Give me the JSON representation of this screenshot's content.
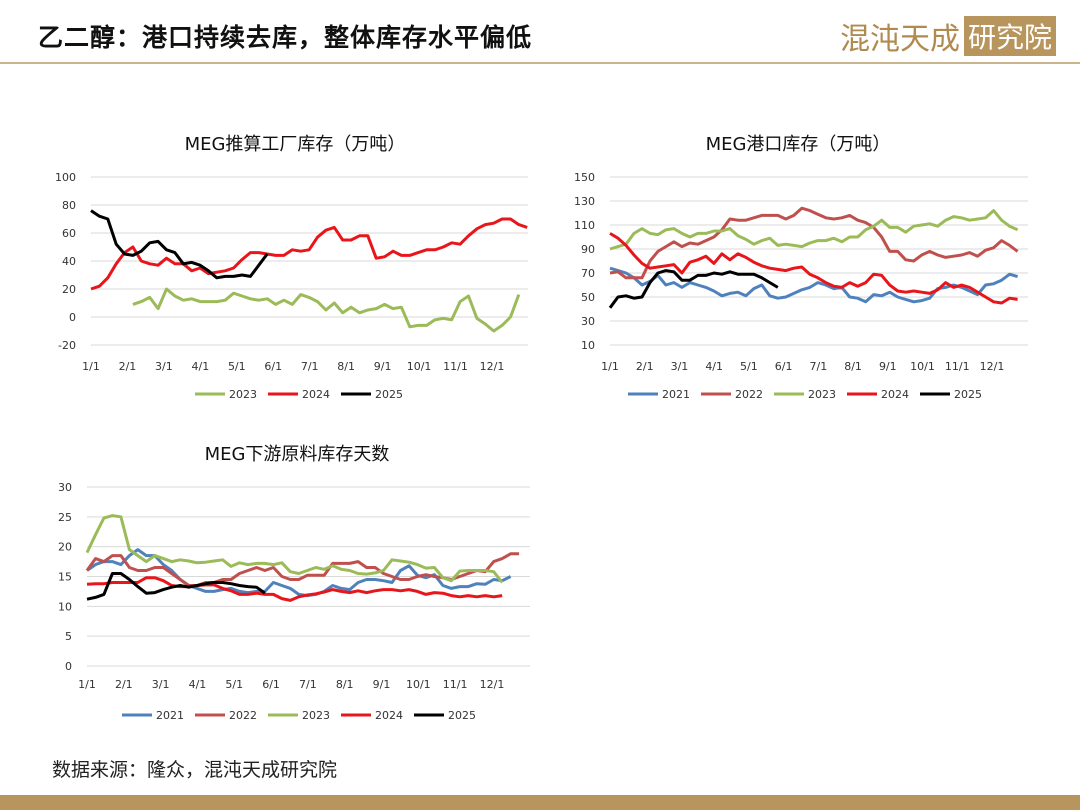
{
  "header": {
    "title": "乙二醇：港口持续去库，整体库存水平偏低",
    "logo_text": "混沌天成",
    "logo_box_text": "研究院"
  },
  "footer": {
    "source": "数据来源：隆众，混沌天成研究院"
  },
  "colors": {
    "2021": "#4f81bd",
    "2022": "#c0504d",
    "2023": "#9bbb59",
    "2024": "#e8161b",
    "2025": "#000000",
    "accent": "#b8955c"
  },
  "chart_data": [
    {
      "type": "line",
      "title": "MEG推算工厂库存（万吨）",
      "ylim": [
        -20,
        100
      ],
      "yticks": [
        "100",
        "80",
        "60",
        "40",
        "20",
        "0",
        "-20"
      ],
      "x_ticks": [
        "1/1",
        "2/1",
        "3/1",
        "4/1",
        "5/1",
        "6/1",
        "7/1",
        "8/1",
        "9/1",
        "10/1",
        "11/1",
        "12/1"
      ],
      "x_unit": "week of year",
      "legend": "bottom",
      "series": [
        {
          "name": "2023",
          "start_week": 5,
          "values": [
            9,
            11,
            14,
            6,
            20,
            15,
            12,
            13,
            11,
            11,
            11,
            12,
            17,
            15,
            13,
            12,
            13,
            9,
            12,
            9,
            16,
            14,
            11,
            5,
            10,
            3,
            7,
            3,
            5,
            6,
            9,
            6,
            7,
            -7,
            -6,
            -6,
            -2,
            -1,
            -2,
            11,
            15,
            -1,
            -5,
            -10,
            -6,
            0,
            16
          ]
        },
        {
          "name": "2024",
          "start_week": 0,
          "values": [
            20,
            22,
            28,
            38,
            46,
            50,
            40,
            38,
            37,
            42,
            38,
            38,
            33,
            35,
            31,
            32,
            33,
            35,
            41,
            46,
            46,
            45,
            44,
            44,
            48,
            47,
            48,
            57,
            62,
            64,
            55,
            55,
            58,
            58,
            42,
            43,
            47,
            44,
            44,
            46,
            48,
            48,
            50,
            53,
            52,
            58,
            63,
            66,
            67,
            70,
            70,
            66,
            64
          ]
        },
        {
          "name": "2025",
          "start_week": 0,
          "values": [
            76,
            72,
            70,
            52,
            45,
            44,
            47,
            53,
            54,
            48,
            46,
            38,
            39,
            37,
            33,
            28,
            29,
            29,
            30,
            29,
            37,
            45
          ]
        }
      ]
    },
    {
      "type": "line",
      "title": "MEG港口库存（万吨）",
      "ylim": [
        10,
        150
      ],
      "yticks": [
        "150",
        "130",
        "110",
        "90",
        "70",
        "50",
        "30",
        "10"
      ],
      "x_ticks": [
        "1/1",
        "2/1",
        "3/1",
        "4/1",
        "5/1",
        "6/1",
        "7/1",
        "8/1",
        "9/1",
        "10/1",
        "11/1",
        "12/1"
      ],
      "x_unit": "week of year",
      "legend": "bottom",
      "series": [
        {
          "name": "2021",
          "start_week": 0,
          "values": [
            74,
            72,
            70,
            66,
            60,
            63,
            68,
            60,
            62,
            58,
            62,
            60,
            58,
            55,
            51,
            53,
            54,
            51,
            57,
            60,
            51,
            49,
            50,
            53,
            56,
            58,
            62,
            60,
            57,
            58,
            50,
            49,
            46,
            52,
            51,
            54,
            50,
            48,
            46,
            47,
            49,
            57,
            58,
            60,
            58,
            55,
            52,
            60,
            61,
            64,
            69,
            67
          ]
        },
        {
          "name": "2022",
          "start_week": 0,
          "values": [
            70,
            71,
            66,
            66,
            66,
            80,
            88,
            92,
            96,
            92,
            95,
            94,
            97,
            100,
            106,
            115,
            114,
            114,
            116,
            118,
            118,
            118,
            115,
            118,
            124,
            122,
            119,
            116,
            115,
            116,
            118,
            114,
            112,
            108,
            100,
            88,
            88,
            81,
            80,
            85,
            88,
            85,
            83,
            84,
            85,
            87,
            84,
            89,
            91,
            97,
            93,
            88
          ]
        },
        {
          "name": "2023",
          "start_week": 0,
          "values": [
            90,
            92,
            94,
            103,
            107,
            103,
            102,
            106,
            107,
            103,
            100,
            103,
            103,
            105,
            105,
            107,
            101,
            98,
            94,
            97,
            99,
            93,
            94,
            93,
            92,
            95,
            97,
            97,
            99,
            96,
            100,
            100,
            106,
            109,
            114,
            108,
            108,
            104,
            109,
            110,
            111,
            109,
            114,
            117,
            116,
            114,
            115,
            116,
            122,
            114,
            109,
            106
          ]
        },
        {
          "name": "2024",
          "start_week": 0,
          "values": [
            103,
            99,
            93,
            85,
            78,
            74,
            75,
            76,
            77,
            70,
            79,
            81,
            84,
            78,
            86,
            81,
            86,
            83,
            79,
            76,
            74,
            73,
            72,
            74,
            75,
            69,
            66,
            62,
            59,
            58,
            62,
            59,
            62,
            69,
            68,
            60,
            55,
            54,
            55,
            54,
            53,
            56,
            62,
            58,
            60,
            58,
            54,
            50,
            46,
            45,
            49,
            48
          ]
        },
        {
          "name": "2025",
          "start_week": 0,
          "values": [
            41,
            50,
            51,
            49,
            50,
            62,
            70,
            72,
            71,
            64,
            64,
            68,
            68,
            70,
            69,
            71,
            69,
            69,
            69,
            66,
            62,
            58
          ]
        }
      ]
    },
    {
      "type": "line",
      "title": "MEG下游原料库存天数",
      "ylim": [
        0,
        30
      ],
      "yticks": [
        "30",
        "25",
        "20",
        "15",
        "10",
        "5",
        "0"
      ],
      "x_ticks": [
        "1/1",
        "2/1",
        "3/1",
        "4/1",
        "5/1",
        "6/1",
        "7/1",
        "8/1",
        "9/1",
        "10/1",
        "11/1",
        "12/1"
      ],
      "x_unit": "week of year",
      "legend": "bottom",
      "series": [
        {
          "name": "2021",
          "start_week": 0,
          "values": [
            16,
            17,
            17.5,
            17.5,
            17,
            18.5,
            19.5,
            18.5,
            18.5,
            17,
            16,
            14.5,
            13.5,
            13,
            12.5,
            12.5,
            12.8,
            13,
            12.5,
            12.3,
            12.5,
            12.5,
            14,
            13.5,
            13,
            12,
            11.8,
            12,
            12.5,
            13.5,
            13,
            12.8,
            14,
            14.5,
            14.5,
            14.3,
            14,
            16,
            16.8,
            15.2,
            14.8,
            15.3,
            13.5,
            13,
            13.3,
            13.3,
            13.8,
            13.7,
            14.5,
            14.3,
            15
          ]
        },
        {
          "name": "2022",
          "start_week": 0,
          "values": [
            16,
            18,
            17.5,
            18.5,
            18.5,
            16.5,
            16,
            16,
            16.5,
            16.5,
            15.5,
            14.5,
            13.5,
            13.5,
            14,
            14,
            14.5,
            14.5,
            15.5,
            16,
            16.5,
            16,
            16.5,
            15,
            14.5,
            14.5,
            15.2,
            15.2,
            15.2,
            17.2,
            17.2,
            17.2,
            17.5,
            16.5,
            16.5,
            15.5,
            15,
            14.5,
            14.5,
            15,
            15.3,
            15,
            14.8,
            14.5,
            15,
            15.5,
            16,
            15.8,
            17.5,
            18,
            18.8,
            18.8
          ]
        },
        {
          "name": "2023",
          "start_week": 0,
          "values": [
            19,
            22,
            24.8,
            25.2,
            25,
            19.5,
            18.5,
            17.5,
            18.5,
            18,
            17.5,
            17.8,
            17.6,
            17.3,
            17.4,
            17.6,
            17.8,
            16.7,
            17.3,
            17,
            17.2,
            17.2,
            17,
            17.3,
            15.8,
            15.5,
            16,
            16.5,
            16.2,
            16.8,
            16.2,
            16,
            15.5,
            15.4,
            15.6,
            16,
            17.8,
            17.6,
            17.4,
            17,
            16.4,
            16.5,
            14.8,
            14.3,
            15.9,
            16,
            16,
            16,
            15.8,
            14
          ]
        },
        {
          "name": "2024",
          "start_week": 0,
          "values": [
            13.7,
            13.8,
            13.8,
            14,
            14,
            14,
            14,
            14.8,
            14.8,
            14.3,
            13.5,
            13.3,
            13.3,
            13.5,
            13.6,
            13.6,
            13,
            12.6,
            12,
            12,
            12.2,
            12,
            12,
            11.3,
            11,
            11.6,
            11.9,
            12.1,
            12.4,
            12.8,
            12.5,
            12.3,
            12.6,
            12.3,
            12.6,
            12.8,
            12.8,
            12.6,
            12.8,
            12.5,
            12,
            12.3,
            12.2,
            11.8,
            11.6,
            11.8,
            11.6,
            11.8,
            11.6,
            11.8
          ]
        },
        {
          "name": "2025",
          "start_week": 0,
          "values": [
            11.2,
            11.5,
            12,
            15.5,
            15.5,
            14.5,
            13.3,
            12.2,
            12.3,
            12.8,
            13.2,
            13.5,
            13.2,
            13.5,
            13.8,
            14,
            14,
            13.8,
            13.5,
            13.3,
            13.2,
            12.2
          ]
        }
      ]
    }
  ]
}
